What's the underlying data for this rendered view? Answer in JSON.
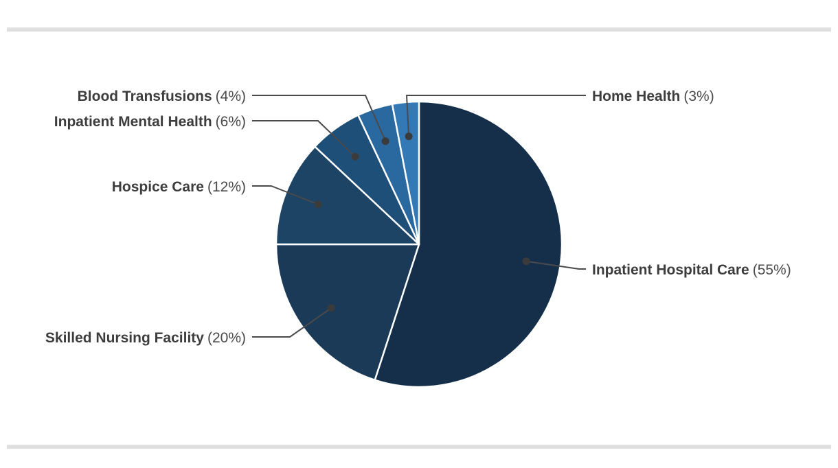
{
  "page": {
    "background": "#ffffff",
    "divider_color": "#dfdfdf"
  },
  "chart_data": {
    "type": "pie",
    "unit": "percent",
    "total": 100,
    "start_angle_deg": 0,
    "direction": "clockwise",
    "legend_position": "none (direct callout labels with leader lines)",
    "slices": [
      {
        "label": "Inpatient Hospital Care",
        "value": 55,
        "pct_label": "(55%)",
        "color": "#152f4a"
      },
      {
        "label": "Skilled Nursing Facility",
        "value": 20,
        "pct_label": "(20%)",
        "color": "#1a3a58"
      },
      {
        "label": "Hospice Care",
        "value": 12,
        "pct_label": "(12%)",
        "color": "#1d4365"
      },
      {
        "label": "Inpatient Mental Health",
        "value": 6,
        "pct_label": "(6%)",
        "color": "#1e4f78"
      },
      {
        "label": "Blood Transfusions",
        "value": 4,
        "pct_label": "(4%)",
        "color": "#2a68a0"
      },
      {
        "label": "Home Health",
        "value": 3,
        "pct_label": "(3%)",
        "color": "#3379b6"
      }
    ],
    "callout_style": {
      "line_color": "#4a4a4a",
      "dot_color": "#3b3b3b",
      "label_color": "#3d3d3d",
      "pct_color": "#4a4a4a",
      "slice_stroke": "#ffffff"
    }
  }
}
